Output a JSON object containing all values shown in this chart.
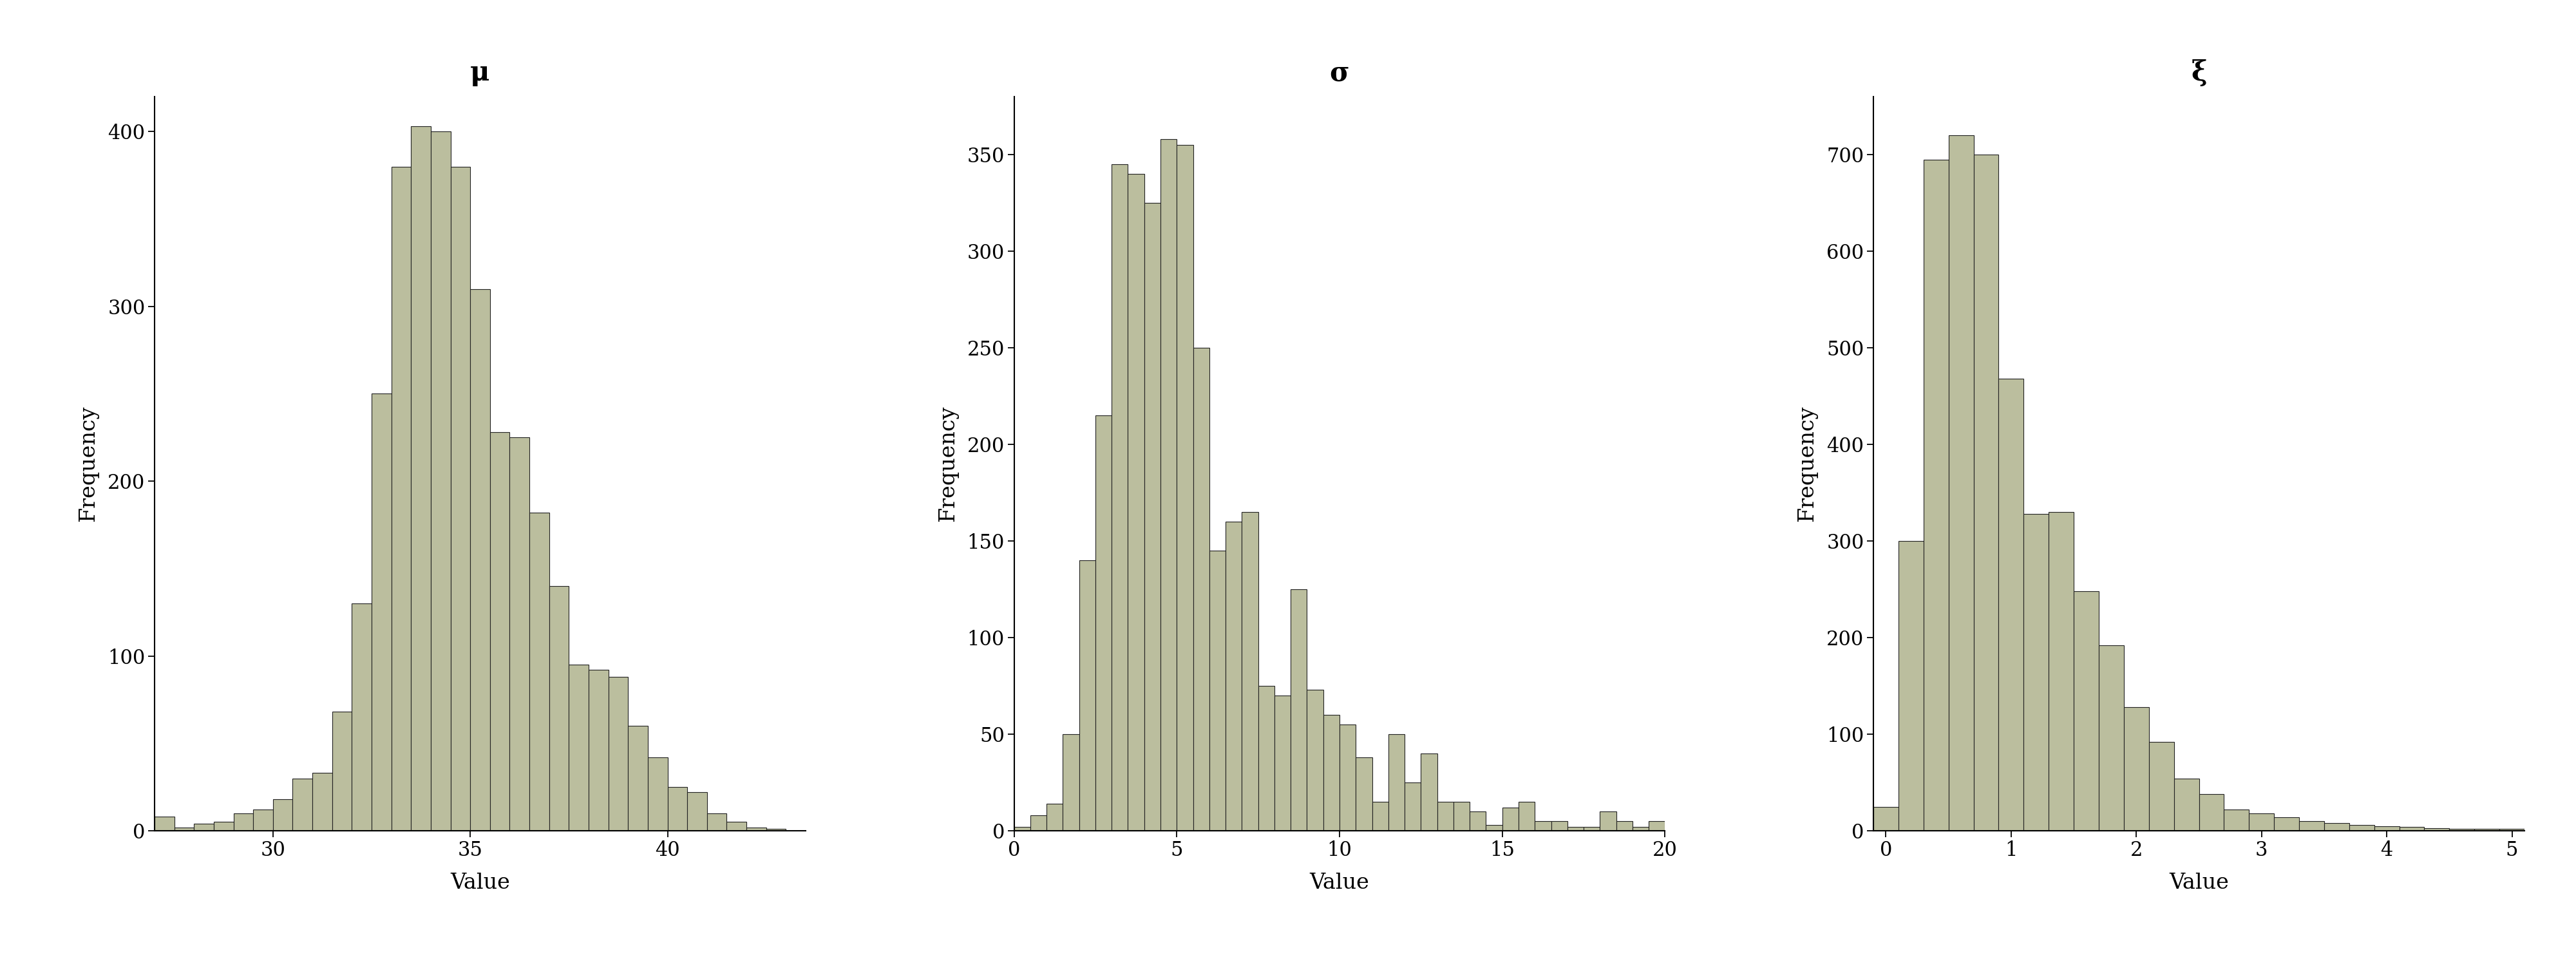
{
  "bar_color": "#bbbe9e",
  "edge_color": "#222222",
  "background_color": "#ffffff",
  "title_fontsize": 30,
  "label_fontsize": 24,
  "tick_fontsize": 22,
  "panels": [
    {
      "title": "μ",
      "xlabel": "Value",
      "ylabel": "Frequency",
      "bin_start": 27.0,
      "bin_width": 0.5,
      "frequencies": [
        8,
        2,
        4,
        5,
        10,
        12,
        18,
        30,
        33,
        68,
        130,
        250,
        380,
        403,
        400,
        380,
        310,
        228,
        225,
        182,
        140,
        95,
        92,
        88,
        60,
        42,
        25,
        22,
        10,
        5,
        2,
        1
      ],
      "xlim": [
        27.0,
        43.5
      ],
      "ylim": [
        0,
        420
      ],
      "xticks": [
        30,
        35,
        40
      ],
      "yticks": [
        0,
        100,
        200,
        300,
        400
      ]
    },
    {
      "title": "σ",
      "xlabel": "Value",
      "ylabel": "Frequency",
      "bin_start": 0.0,
      "bin_width": 0.5,
      "frequencies": [
        2,
        8,
        14,
        50,
        140,
        215,
        345,
        340,
        325,
        358,
        355,
        250,
        145,
        160,
        165,
        75,
        70,
        125,
        73,
        60,
        55,
        38,
        15,
        50,
        25,
        40,
        15,
        15,
        10,
        3,
        12,
        15,
        5,
        5,
        2,
        2,
        10,
        5,
        2,
        5
      ],
      "xlim": [
        0.0,
        20.0
      ],
      "ylim": [
        0,
        380
      ],
      "xticks": [
        0,
        5,
        10,
        15,
        20
      ],
      "yticks": [
        0,
        50,
        100,
        150,
        200,
        250,
        300,
        350
      ]
    },
    {
      "title": "ξ",
      "xlabel": "Value",
      "ylabel": "Frequency",
      "bin_start": -0.1,
      "bin_width": 0.2,
      "frequencies": [
        25,
        300,
        695,
        720,
        700,
        468,
        328,
        330,
        248,
        192,
        128,
        92,
        54,
        38,
        22,
        18,
        14,
        10,
        8,
        6,
        5,
        4,
        3,
        2,
        2,
        2,
        1,
        2,
        1,
        1,
        0,
        0,
        0,
        0,
        0,
        0,
        0,
        0,
        0,
        0,
        0,
        0,
        0,
        0,
        0,
        0,
        0,
        0,
        0,
        1,
        0,
        0,
        0,
        0,
        0,
        0,
        0,
        0,
        0,
        0,
        0,
        0,
        1
      ],
      "xlim": [
        -0.1,
        5.1
      ],
      "ylim": [
        0,
        760
      ],
      "xticks": [
        0,
        1,
        2,
        3,
        4,
        5
      ],
      "yticks": [
        0,
        100,
        200,
        300,
        400,
        500,
        600,
        700
      ]
    }
  ]
}
